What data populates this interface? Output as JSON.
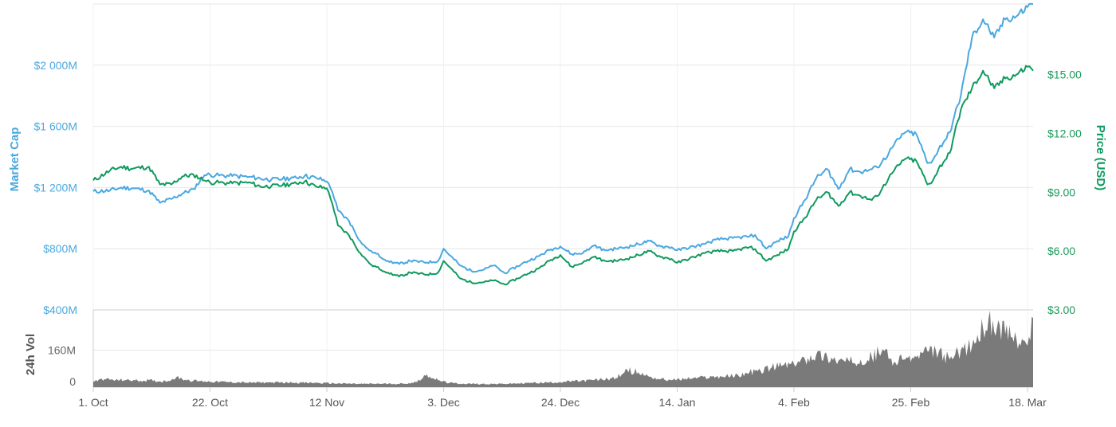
{
  "chart_data": {
    "type": "line",
    "colors": {
      "market_cap": "#4aa8e0",
      "price": "#0f9a5e",
      "volume": "#7a7a7a",
      "grid": "#e6e6e6"
    },
    "legend": "none",
    "grid": true,
    "axes": {
      "left_title": "Market Cap",
      "right_title": "Price (USD)",
      "volume_title": "24h Vol",
      "left_ticks": [
        "$400M",
        "$800M",
        "$1 200M",
        "$1 600M",
        "$2 000M"
      ],
      "left_tick_values": [
        400,
        800,
        1200,
        1600,
        2000
      ],
      "left_range": [
        400,
        2400
      ],
      "left_unit": "$M",
      "right_ticks": [
        "$3.00",
        "$6.00",
        "$9.00",
        "$12.00",
        "$15.00"
      ],
      "right_tick_values": [
        3,
        6,
        9,
        12,
        15
      ],
      "right_range": [
        3,
        18.6
      ],
      "volume_ticks": [
        "0",
        "160M",
        "$400M"
      ],
      "volume_tick_values": [
        0,
        160,
        400
      ],
      "volume_range": [
        0,
        335
      ],
      "x_ticks": [
        "1. Oct",
        "22. Oct",
        "12 Nov",
        "3. Dec",
        "24. Dec",
        "14. Jan",
        "4. Feb",
        "25. Feb",
        "18. Mar"
      ],
      "x_tick_values": [
        0,
        21,
        42,
        63,
        84,
        105,
        126,
        147,
        168
      ],
      "x_range": [
        0,
        169
      ]
    },
    "series": [
      {
        "name": "Market Cap",
        "axis": "left",
        "x": [
          0,
          3,
          5,
          7,
          10,
          12,
          14,
          16,
          18,
          20,
          21,
          22,
          25,
          28,
          30,
          32,
          34,
          36,
          38,
          40,
          42,
          43,
          44,
          46,
          48,
          49,
          50,
          53,
          55,
          57,
          60,
          62,
          63,
          64,
          66,
          68,
          70,
          72,
          74,
          77,
          80,
          82,
          84,
          86,
          88,
          90,
          92,
          94,
          96,
          98,
          100,
          102,
          104,
          105,
          108,
          110,
          112,
          115,
          118,
          119,
          121,
          123,
          125,
          126,
          128,
          130,
          132,
          134,
          136,
          138,
          140,
          141,
          143,
          144,
          146,
          148,
          150,
          151,
          152,
          154,
          156,
          158,
          160,
          162,
          164,
          166,
          168,
          169
        ],
        "values": [
          1175,
          1180,
          1200,
          1195,
          1180,
          1100,
          1125,
          1160,
          1190,
          1280,
          1285,
          1280,
          1275,
          1270,
          1260,
          1250,
          1255,
          1265,
          1275,
          1265,
          1240,
          1170,
          1050,
          980,
          850,
          810,
          785,
          720,
          700,
          720,
          710,
          720,
          800,
          760,
          690,
          655,
          660,
          690,
          640,
          700,
          750,
          790,
          815,
          765,
          770,
          820,
          790,
          800,
          810,
          830,
          850,
          815,
          810,
          790,
          815,
          830,
          860,
          870,
          880,
          890,
          800,
          850,
          880,
          1000,
          1120,
          1260,
          1320,
          1190,
          1320,
          1300,
          1320,
          1330,
          1420,
          1480,
          1560,
          1550,
          1360,
          1380,
          1450,
          1560,
          1800,
          2180,
          2300,
          2180,
          2300,
          2320,
          2380,
          2400
        ]
      },
      {
        "name": "Price (USD)",
        "axis": "right",
        "x": [
          0,
          3,
          5,
          7,
          10,
          12,
          14,
          16,
          18,
          20,
          21,
          22,
          25,
          28,
          30,
          32,
          34,
          36,
          38,
          40,
          42,
          43,
          44,
          46,
          48,
          49,
          50,
          53,
          55,
          57,
          60,
          62,
          63,
          64,
          66,
          68,
          70,
          72,
          74,
          77,
          80,
          82,
          84,
          86,
          88,
          90,
          92,
          94,
          96,
          98,
          100,
          102,
          104,
          105,
          108,
          110,
          112,
          115,
          118,
          119,
          121,
          123,
          125,
          126,
          128,
          130,
          132,
          134,
          136,
          138,
          140,
          141,
          143,
          144,
          146,
          148,
          150,
          151,
          152,
          154,
          156,
          158,
          160,
          162,
          164,
          166,
          168,
          169
        ],
        "values": [
          9.6,
          10.1,
          10.3,
          10.2,
          10.3,
          9.4,
          9.4,
          9.8,
          9.9,
          9.6,
          9.5,
          9.5,
          9.45,
          9.5,
          9.3,
          9.3,
          9.35,
          9.45,
          9.55,
          9.3,
          9.2,
          8.4,
          7.3,
          6.8,
          5.9,
          5.6,
          5.3,
          4.9,
          4.7,
          4.9,
          4.8,
          4.9,
          5.5,
          5.2,
          4.6,
          4.4,
          4.4,
          4.5,
          4.3,
          4.7,
          5.1,
          5.5,
          5.8,
          5.2,
          5.4,
          5.7,
          5.5,
          5.5,
          5.6,
          5.8,
          6.0,
          5.7,
          5.6,
          5.4,
          5.7,
          5.9,
          6.0,
          6.0,
          6.2,
          6.1,
          5.5,
          5.8,
          6.1,
          7.0,
          7.7,
          8.6,
          9.0,
          8.3,
          9.0,
          8.8,
          8.6,
          8.8,
          9.7,
          10.1,
          10.7,
          10.6,
          9.4,
          9.6,
          10.2,
          11.0,
          13.2,
          14.3,
          15.2,
          14.3,
          14.8,
          15.0,
          15.4,
          15.2
        ]
      },
      {
        "name": "24h Vol",
        "axis": "volume",
        "x": [
          0,
          2,
          4,
          6,
          8,
          10,
          12,
          14,
          15,
          16,
          18,
          20,
          24,
          28,
          32,
          36,
          40,
          44,
          48,
          52,
          56,
          58,
          60,
          62,
          64,
          66,
          70,
          74,
          78,
          82,
          86,
          90,
          94,
          96,
          98,
          100,
          102,
          104,
          108,
          112,
          116,
          118,
          120,
          122,
          124,
          126,
          128,
          130,
          132,
          134,
          136,
          138,
          140,
          142,
          144,
          146,
          148,
          150,
          152,
          154,
          156,
          158,
          160,
          161,
          162,
          163,
          164,
          166,
          168,
          169
        ],
        "values": [
          25,
          35,
          30,
          32,
          28,
          30,
          25,
          30,
          45,
          35,
          28,
          25,
          22,
          20,
          20,
          20,
          18,
          16,
          14,
          15,
          15,
          22,
          55,
          30,
          18,
          15,
          14,
          14,
          18,
          20,
          25,
          30,
          40,
          75,
          65,
          45,
          35,
          30,
          40,
          45,
          50,
          65,
          70,
          85,
          95,
          100,
          120,
          140,
          130,
          115,
          110,
          120,
          130,
          165,
          110,
          120,
          130,
          155,
          150,
          120,
          160,
          175,
          255,
          300,
          240,
          270,
          230,
          210,
          180,
          300
        ]
      }
    ]
  }
}
